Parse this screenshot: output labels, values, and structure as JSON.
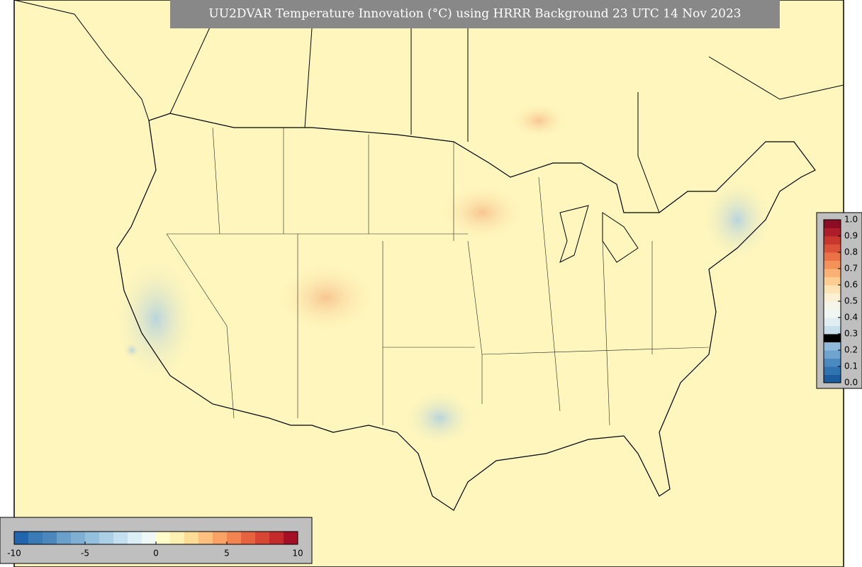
{
  "map": {
    "title": "UU2DVAR Temperature Innovation (°C) using HRRR Background 23 UTC 14 Nov 2023",
    "colorbar_bottom": {
      "lim": [
        -10,
        10
      ],
      "ticks": [
        -10,
        -5,
        0,
        5,
        10
      ],
      "colors": [
        "#2166ac",
        "#3a7ab5",
        "#4b86bd",
        "#6a9fca",
        "#7fb0d4",
        "#94c0dd",
        "#abd0e6",
        "#c4dff0",
        "#dbeef5",
        "#eef8f4",
        "#fffecb",
        "#fef0b0",
        "#fedc96",
        "#fdc07f",
        "#f9a265",
        "#f2844f",
        "#e5643f",
        "#d74633",
        "#c52a2a",
        "#a50f26"
      ]
    },
    "colorbar_right": {
      "lim": [
        0,
        1
      ],
      "ticks": [
        {
          "value": 0,
          "label": "0.0"
        },
        0.1,
        0.2,
        0.3,
        0.4,
        0.5,
        0.6,
        0.7,
        0.8,
        0.9,
        {
          "value": 1,
          "label": "1.0"
        }
      ],
      "colors": [
        "#1c5c9e",
        "#2f73b0",
        "#4a8ac0",
        "#6ea4cf",
        "#8fbad9",
        "#acceе3",
        "#c8dfec",
        "#e0eef3",
        "#eff6f3",
        "#f6f5ea",
        "#fbf0d4",
        "#fde2b4",
        "#fdcc92",
        "#fbb074",
        "#f5925a",
        "#eb7246",
        "#dc5239",
        "#c9362e",
        "#b01d2a",
        "#8c0d23"
      ]
    }
  }
}
